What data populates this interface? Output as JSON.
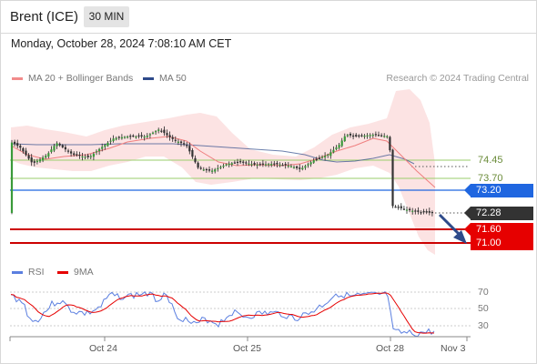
{
  "header": {
    "symbol": "Brent (ICE)",
    "timeframe": "30 MIN"
  },
  "datetime": "Monday, October 28, 2024 7:08:10 AM CET",
  "legend": {
    "ma20": {
      "label": "MA 20 + Bollinger Bands",
      "color": "#f28b8b"
    },
    "ma50": {
      "label": "MA 50",
      "color": "#2e4a8a"
    }
  },
  "watermark": "Research © 2024 Trading Central",
  "levels": {
    "l1": {
      "value": "74.45",
      "type": "plain"
    },
    "l2": {
      "value": "73.70",
      "type": "plain"
    },
    "l3": {
      "value": "73.20",
      "type": "pivot",
      "color": "#1f66e0"
    },
    "l4": {
      "value": "72.28",
      "type": "last",
      "color": "#333333"
    },
    "l5": {
      "value": "71.60",
      "type": "target",
      "color": "#e60000"
    },
    "l6": {
      "value": "71.00",
      "type": "target",
      "color": "#e60000"
    }
  },
  "rsi_panel": {
    "rsi_label": "RSI",
    "rsi_color": "#5b7fe0",
    "ma_label": "9MA",
    "ma_color": "#e60000",
    "levels": [
      "70",
      "50",
      "30"
    ]
  },
  "x_axis": [
    "Oct 24",
    "Oct 25",
    "Oct 28",
    "Nov 3"
  ],
  "chart_data": {
    "type": "candlestick",
    "instrument": "Brent (ICE)",
    "interval": "30 MIN",
    "y_levels": [
      74.45,
      73.7,
      73.2,
      72.28,
      71.6,
      71.0
    ],
    "last_price": 72.28,
    "targets": [
      71.6,
      71.0
    ],
    "pivot": 73.2,
    "close_path": [
      {
        "x": "Oct 23",
        "close": 74.0
      },
      {
        "x": "Oct 23",
        "close": 74.15
      },
      {
        "x": "Oct 24",
        "close": 74.55
      },
      {
        "x": "Oct 24",
        "close": 74.05
      },
      {
        "x": "Oct 24",
        "close": 74.5
      },
      {
        "x": "Oct 24",
        "close": 74.85
      },
      {
        "x": "Oct 24",
        "close": 75.4
      },
      {
        "x": "Oct 24",
        "close": 74.95
      },
      {
        "x": "Oct 25",
        "close": 74.05
      },
      {
        "x": "Oct 25",
        "close": 74.35
      },
      {
        "x": "Oct 25",
        "close": 74.4
      },
      {
        "x": "Oct 25",
        "close": 74.3
      },
      {
        "x": "Oct 25",
        "close": 74.6
      },
      {
        "x": "Oct 25",
        "close": 74.4
      },
      {
        "x": "Oct 25",
        "close": 75.15
      },
      {
        "x": "Oct 25",
        "close": 75.05
      },
      {
        "x": "Oct 28",
        "close": 72.35
      },
      {
        "x": "Oct 28",
        "close": 72.28
      }
    ],
    "rsi_range": [
      0,
      100
    ],
    "rsi_levels": [
      70,
      50,
      30
    ]
  }
}
